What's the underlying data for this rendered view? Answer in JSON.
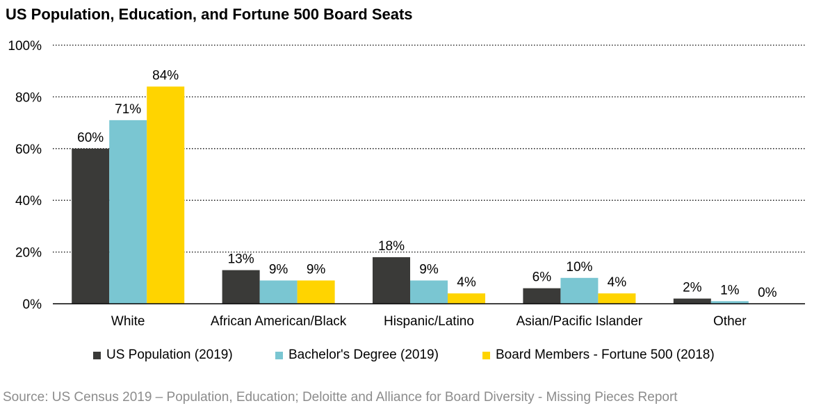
{
  "title": "US Population, Education, and Fortune 500 Board Seats",
  "source": "Source: US Census 2019 – Population, Education; Deloitte and Alliance for Board Diversity - Missing Pieces Report",
  "chart_data": {
    "type": "bar",
    "categories": [
      "White",
      "African American/Black",
      "Hispanic/Latino",
      "Asian/Pacific Islander",
      "Other"
    ],
    "series": [
      {
        "name": "US Population (2019)",
        "color": "#3a3a38",
        "values": [
          60,
          13,
          18,
          6,
          2
        ],
        "labels": [
          "60%",
          "13%",
          "18%",
          "6%",
          "2%"
        ]
      },
      {
        "name": "Bachelor's Degree (2019)",
        "color": "#7ac6d2",
        "values": [
          71,
          9,
          9,
          10,
          1
        ],
        "labels": [
          "71%",
          "9%",
          "9%",
          "10%",
          "1%"
        ]
      },
      {
        "name": "Board Members - Fortune 500 (2018)",
        "color": "#ffd400",
        "values": [
          84,
          9,
          4,
          4,
          0
        ],
        "labels": [
          "84%",
          "9%",
          "4%",
          "4%",
          "0%"
        ]
      }
    ],
    "ylim": [
      0,
      100
    ],
    "yticks": [
      "0%",
      "20%",
      "40%",
      "60%",
      "80%",
      "100%"
    ],
    "ytick_values": [
      0,
      20,
      40,
      60,
      80,
      100
    ],
    "grid": true,
    "legend_position": "bottom"
  }
}
